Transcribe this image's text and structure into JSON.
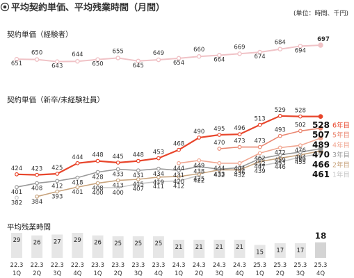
{
  "title": "平均契約単価、平均残業時間（月間）",
  "unit_note": "(単位：時間、千円)",
  "section_experienced": "契約単価（経験者）",
  "section_new": "契約単価（新卒/未経験社員）",
  "section_overtime": "平均残業時間",
  "colors": {
    "experienced": "#f0c2c6",
    "year6": "#e8452b",
    "year5": "#ea8670",
    "year4": "#f1a792",
    "year3": "#9a9a9a",
    "year2": "#c8a47e",
    "year1": "#c7c7c7",
    "bar": "#e6e6e6",
    "bar_last": "#d4d4d4"
  },
  "chart_data": {
    "type": "line",
    "x_tick_labels": [
      [
        "22.3",
        "1Q"
      ],
      [
        "22.3",
        "2Q"
      ],
      [
        "22.3",
        "3Q"
      ],
      [
        "22.3",
        "4Q"
      ],
      [
        "23.3",
        "1Q"
      ],
      [
        "23.3",
        "2Q"
      ],
      [
        "23.3",
        "3Q"
      ],
      [
        "23.3",
        "4Q"
      ],
      [
        "24.3",
        "1Q"
      ],
      [
        "24.3",
        "2Q"
      ],
      [
        "24.3",
        "3Q"
      ],
      [
        "24.3",
        "4Q"
      ],
      [
        "25.3",
        "1Q"
      ],
      [
        "25.3",
        "2Q"
      ],
      [
        "25.3",
        "3Q"
      ],
      [
        "25.3",
        "4Q"
      ]
    ],
    "experienced": {
      "values": [
        651,
        650,
        643,
        644,
        650,
        655,
        645,
        649,
        654,
        660,
        664,
        669,
        674,
        684,
        694,
        697
      ]
    },
    "new_graduates": {
      "series": [
        {
          "name": "6年目",
          "color_key": "year6",
          "values": [
            424,
            423,
            425,
            444,
            448,
            445,
            448,
            453,
            468,
            490,
            495,
            496,
            513,
            529,
            528,
            528
          ]
        },
        {
          "name": "5年目",
          "color_key": "year5",
          "values": [
            null,
            null,
            null,
            null,
            null,
            null,
            null,
            null,
            null,
            null,
            470,
            473,
            473,
            493,
            502,
            507
          ]
        },
        {
          "name": "4年目",
          "color_key": "year4",
          "values": [
            null,
            null,
            null,
            null,
            null,
            null,
            null,
            null,
            444,
            449,
            444,
            444,
            462,
            472,
            476,
            489
          ]
        },
        {
          "name": "3年目",
          "color_key": "year3",
          "values": [
            401,
            408,
            412,
            418,
            428,
            433,
            431,
            434,
            431,
            438,
            433,
            436,
            452,
            459,
            464,
            470
          ]
        },
        {
          "name": "2年目",
          "color_key": "year2",
          "values": [
            null,
            384,
            393,
            401,
            408,
            413,
            415,
            419,
            420,
            425,
            432,
            432,
            447,
            453,
            459,
            466
          ]
        },
        {
          "name": "1年目",
          "color_key": "year1",
          "values": [
            382,
            null,
            null,
            null,
            400,
            400,
            407,
            411,
            412,
            422,
            null,
            null,
            439,
            446,
            455,
            461
          ]
        }
      ]
    },
    "overtime": {
      "type": "bar",
      "values": [
        29,
        26,
        27,
        29,
        26,
        25,
        25,
        25,
        21,
        21,
        21,
        21,
        15,
        17,
        17,
        18
      ]
    }
  }
}
